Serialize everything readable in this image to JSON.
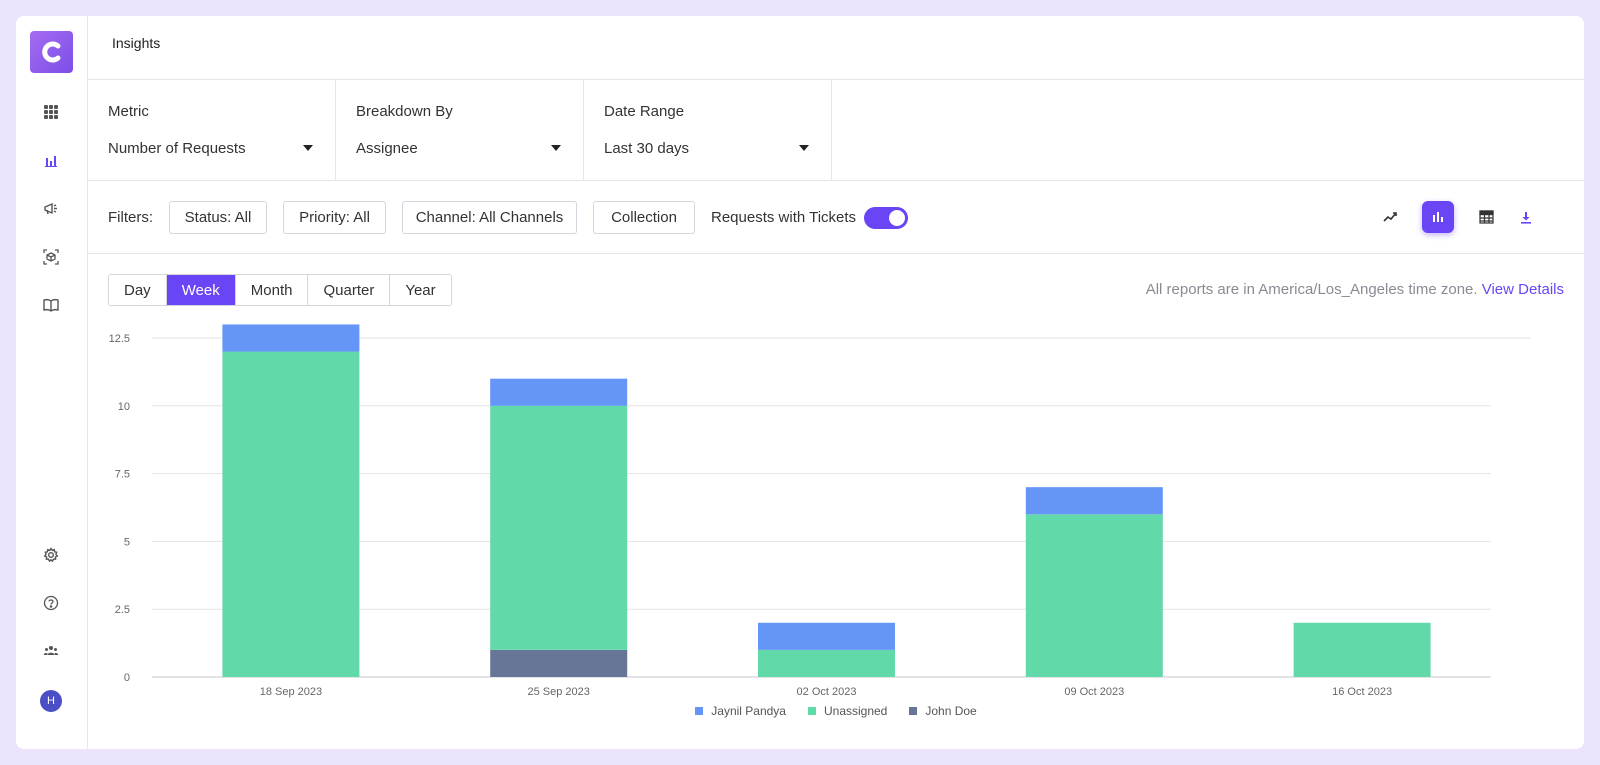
{
  "app": {
    "logo_letter": "C",
    "page_title": "Insights",
    "avatar_initial": "H"
  },
  "sidebar": {
    "icons": [
      "apps-grid-icon",
      "bar-chart-icon",
      "megaphone-icon",
      "cube-scan-icon",
      "book-icon"
    ],
    "bottom_icons": [
      "gear-icon",
      "help-icon",
      "team-icon"
    ]
  },
  "selectors": [
    {
      "label": "Metric",
      "value": "Number of Requests"
    },
    {
      "label": "Breakdown By",
      "value": "Assignee"
    },
    {
      "label": "Date Range",
      "value": "Last 30 days"
    }
  ],
  "filters": {
    "label": "Filters:",
    "chips": [
      "Status: All",
      "Priority: All",
      "Channel: All Channels",
      "Collection"
    ],
    "requests_with_tickets": "Requests with Tickets",
    "requests_with_tickets_on": true,
    "view_buttons": [
      "line-chart-icon",
      "bar-chart-icon",
      "table-icon",
      "download-icon"
    ],
    "active_view": "bar-chart-icon"
  },
  "periods": {
    "options": [
      "Day",
      "Week",
      "Month",
      "Quarter",
      "Year"
    ],
    "selected": "Week"
  },
  "timezone": {
    "text": "All reports are in America/Los_Angeles time zone.",
    "link": "View Details"
  },
  "colors": {
    "accent": "#6a45f5",
    "jaynil": "#6495f7",
    "unassigned": "#62d9a9",
    "john": "#677696"
  },
  "chart_data": {
    "type": "bar",
    "stacked": true,
    "categories": [
      "18 Sep 2023",
      "25 Sep 2023",
      "02 Oct 2023",
      "09 Oct 2023",
      "16 Oct 2023"
    ],
    "series": [
      {
        "name": "John Doe",
        "values": [
          0,
          1,
          0,
          0,
          0
        ],
        "color": "#677696"
      },
      {
        "name": "Unassigned",
        "values": [
          12,
          9,
          1,
          6,
          2
        ],
        "color": "#62d9a9"
      },
      {
        "name": "Jaynil Pandya",
        "values": [
          1,
          1,
          1,
          1,
          0
        ],
        "color": "#6495f7"
      }
    ],
    "legend": [
      "Jaynil Pandya",
      "Unassigned",
      "John Doe"
    ],
    "legend_position": "bottom",
    "yticks": [
      "0",
      "2.5",
      "5",
      "7.5",
      "10",
      "12.5"
    ],
    "ylim": [
      0,
      12.5
    ],
    "grid": true
  }
}
